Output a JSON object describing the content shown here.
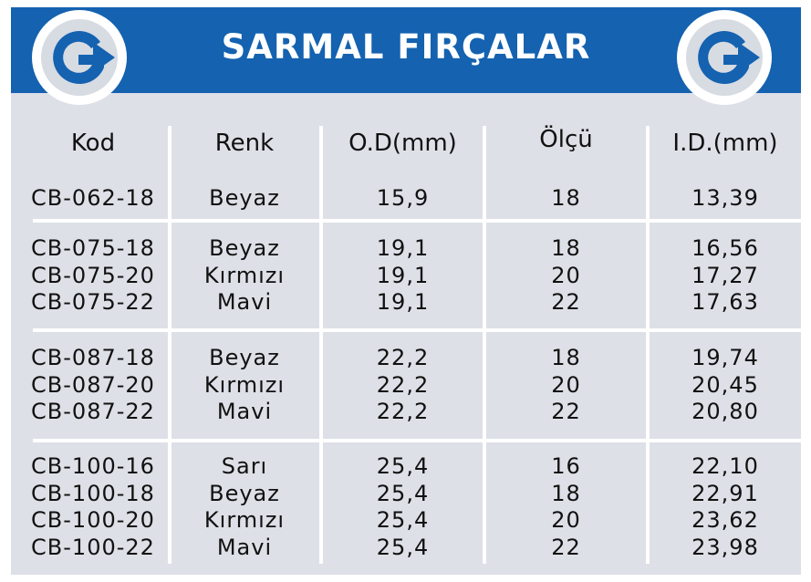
{
  "title": "SARMAL FIRÇALAR",
  "colors": {
    "header": "#1462b0",
    "panel": "#dde0e7",
    "logo": "#1462b0"
  },
  "logo": {
    "icon": "g-arrow-logo-icon"
  },
  "columns": [
    "Kod",
    "Renk",
    "O.D(mm)",
    "Ölçü",
    "I.D.(mm)"
  ],
  "groups": [
    {
      "rows": [
        [
          "CB-062-18",
          "Beyaz",
          "15,9",
          "18",
          "13,39"
        ]
      ]
    },
    {
      "rows": [
        [
          "CB-075-18",
          "Beyaz",
          "19,1",
          "18",
          "16,56"
        ],
        [
          "CB-075-20",
          "Kırmızı",
          "19,1",
          "20",
          "17,27"
        ],
        [
          "CB-075-22",
          "Mavi",
          "19,1",
          "22",
          "17,63"
        ]
      ]
    },
    {
      "rows": [
        [
          "CB-087-18",
          "Beyaz",
          "22,2",
          "18",
          "19,74"
        ],
        [
          "CB-087-20",
          "Kırmızı",
          "22,2",
          "20",
          "20,45"
        ],
        [
          "CB-087-22",
          "Mavi",
          "22,2",
          "22",
          "20,80"
        ]
      ]
    },
    {
      "rows": [
        [
          "CB-100-16",
          "Sarı",
          "25,4",
          "16",
          "22,10"
        ],
        [
          "CB-100-18",
          "Beyaz",
          "25,4",
          "18",
          "22,91"
        ],
        [
          "CB-100-20",
          "Kırmızı",
          "25,4",
          "20",
          "23,62"
        ],
        [
          "CB-100-22",
          "Mavi",
          "25,4",
          "22",
          "23,98"
        ]
      ]
    }
  ]
}
